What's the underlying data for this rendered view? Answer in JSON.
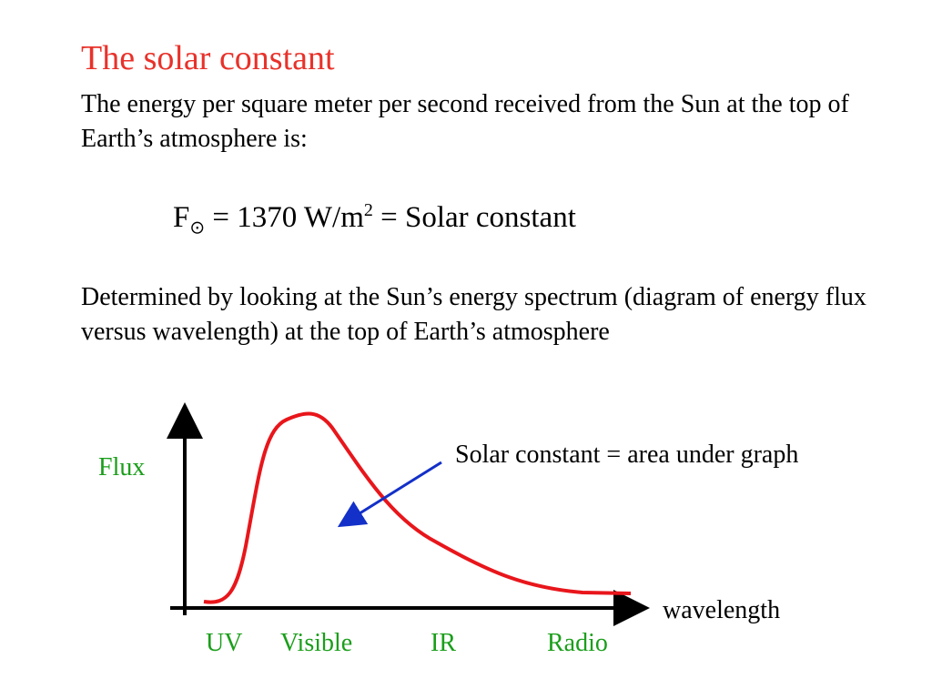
{
  "title": "The solar constant",
  "intro": "The energy per square meter per second received from the Sun at the top of Earth’s atmosphere is:",
  "formula": {
    "symbol": "F",
    "subscript": "⊙",
    "middle": " = 1370 W/m",
    "superscript": "2",
    "rest": " = Solar constant"
  },
  "explanation": "Determined by looking at the Sun’s energy spectrum (diagram of energy flux versus wavelength) at the top of  Earth’s atmosphere",
  "diagram": {
    "y_label": "Flux",
    "x_label": "wavelength",
    "annotation": "Solar constant = area under graph",
    "regions": [
      "UV",
      "Visible",
      "IR",
      "Radio"
    ]
  }
}
